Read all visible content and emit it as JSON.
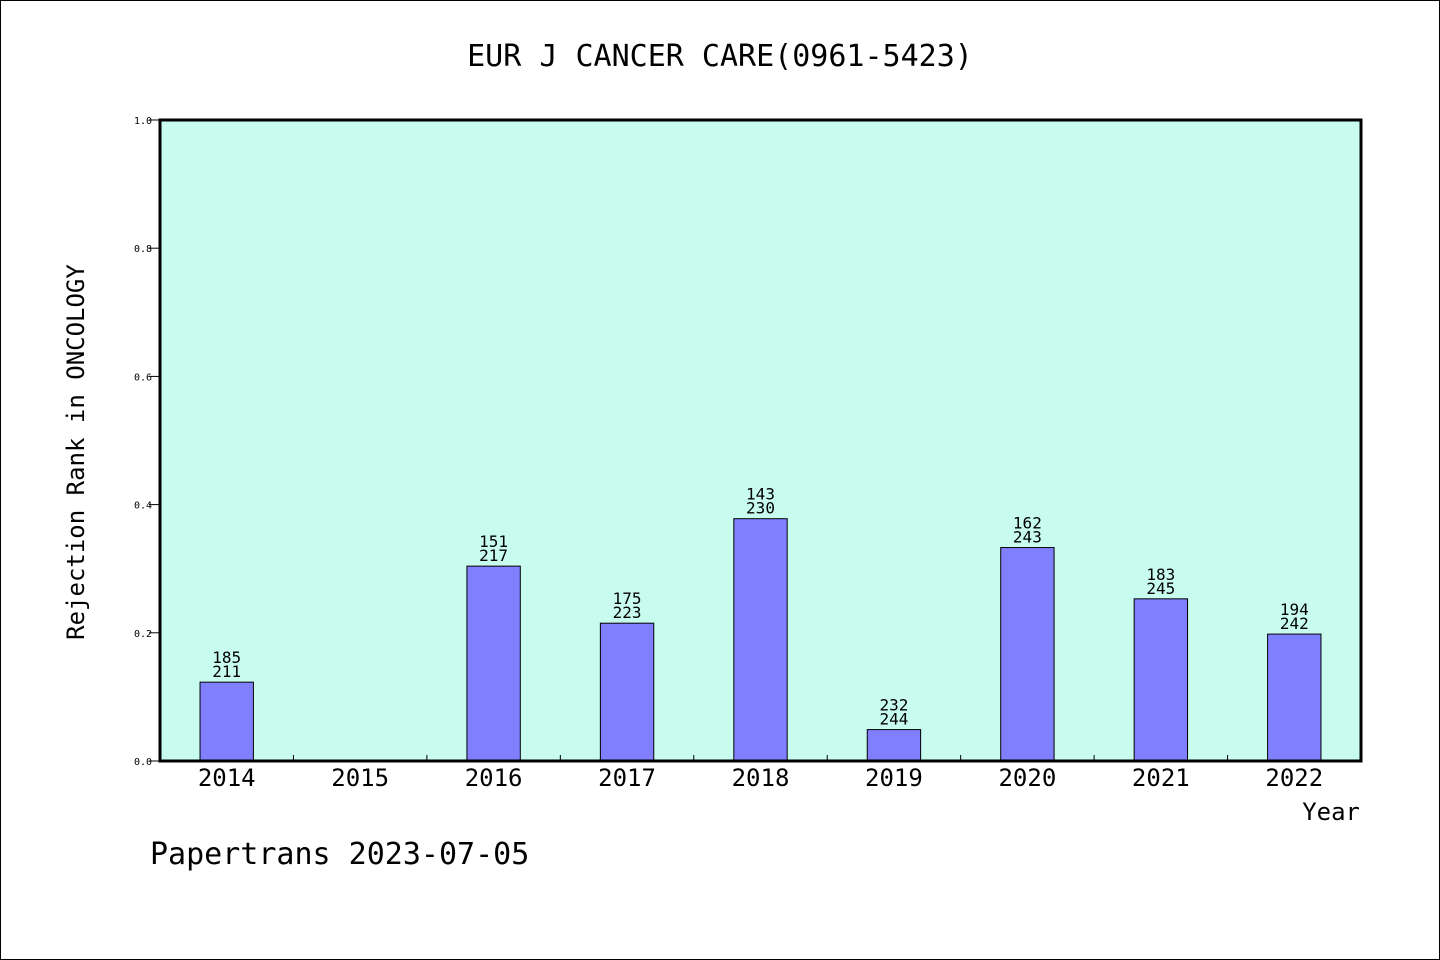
{
  "chart_data": {
    "type": "bar",
    "title": "EUR J CANCER CARE(0961-5423)",
    "xlabel": "Year",
    "ylabel": "Rejection Rank in ONCOLOGY",
    "categories": [
      "2014",
      "2015",
      "2016",
      "2017",
      "2018",
      "2019",
      "2020",
      "2021",
      "2022"
    ],
    "values": [
      0.123,
      0,
      0.304,
      0.215,
      0.378,
      0.049,
      0.333,
      0.253,
      0.198
    ],
    "rank_labels": [
      [
        "185",
        "211"
      ],
      null,
      [
        "151",
        "217"
      ],
      [
        "175",
        "223"
      ],
      [
        "143",
        "230"
      ],
      [
        "232",
        "244"
      ],
      [
        "162",
        "243"
      ],
      [
        "183",
        "245"
      ],
      [
        "194",
        "242"
      ]
    ],
    "ylim": [
      0.0,
      1.0
    ],
    "yticks": [
      "0.0",
      "0.2",
      "0.4",
      "0.6",
      "0.8",
      "1.0"
    ],
    "grid": false,
    "colors": {
      "plot_background": "#c8fcee",
      "bar_fill": "#8080ff",
      "bar_stroke": "#000000"
    }
  },
  "footer": {
    "text": "Papertrans 2023-07-05"
  }
}
